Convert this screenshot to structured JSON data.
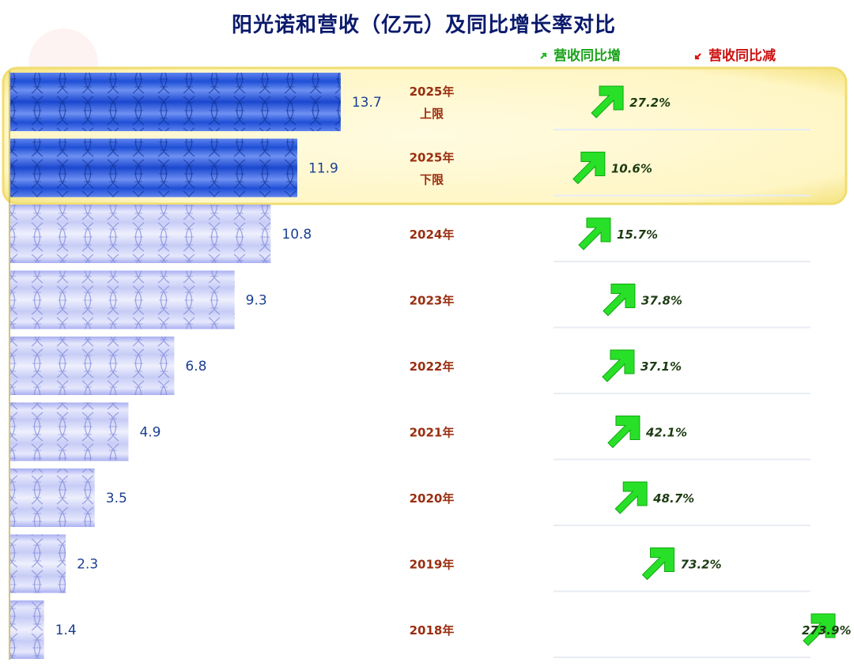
{
  "title": "阳光诺和营收（亿元）及同比增长率对比",
  "legend": {
    "up": "营收同比增",
    "down": "营收同比减"
  },
  "colors": {
    "up": "#22dd22",
    "down": "#dd1111",
    "forecast_bar": "#1f4fd6",
    "history_bar": "#c8ccf6",
    "highlight": "#fff6b8"
  },
  "chart_data": {
    "type": "bar",
    "orientation": "horizontal",
    "title": "阳光诺和营收（亿元）及同比增长率对比",
    "unit": "亿元",
    "categories": [
      {
        "year": "2025年",
        "sub": "上限"
      },
      {
        "year": "2025年",
        "sub": "下限"
      },
      {
        "year": "2024年",
        "sub": ""
      },
      {
        "year": "2023年",
        "sub": ""
      },
      {
        "year": "2022年",
        "sub": ""
      },
      {
        "year": "2021年",
        "sub": ""
      },
      {
        "year": "2020年",
        "sub": ""
      },
      {
        "year": "2019年",
        "sub": ""
      },
      {
        "year": "2018年",
        "sub": ""
      }
    ],
    "values": [
      13.7,
      11.9,
      10.8,
      9.3,
      6.8,
      4.9,
      3.5,
      2.3,
      1.4
    ],
    "value_labels": [
      "13.7",
      "11.9",
      "10.8",
      "9.3",
      "6.8",
      "4.9",
      "3.5",
      "2.3",
      "1.4"
    ],
    "growth": [
      27.2,
      10.6,
      15.7,
      37.8,
      37.1,
      42.1,
      48.7,
      73.2,
      273.9
    ],
    "growth_labels": [
      "27.2%",
      "10.6%",
      "15.7%",
      "37.8%",
      "37.1%",
      "42.1%",
      "48.7%",
      "73.2%",
      "273.9%"
    ],
    "forecast_rows": 2
  }
}
